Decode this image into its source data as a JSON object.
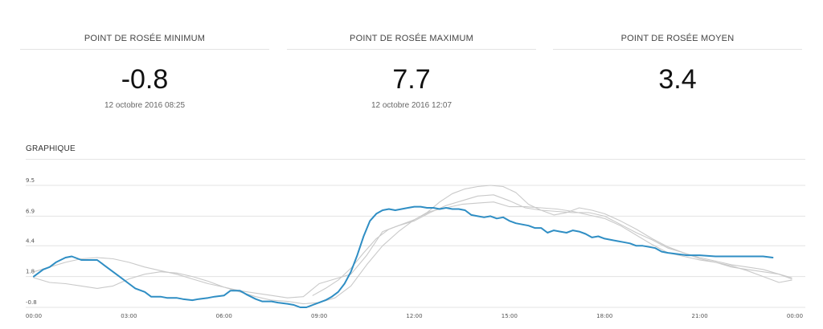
{
  "stats": [
    {
      "title": "POINT DE ROSÉE MINIMUM",
      "value": "-0.8",
      "date": "12 octobre 2016 08:25"
    },
    {
      "title": "POINT DE ROSÉE MAXIMUM",
      "value": "7.7",
      "date": "12 octobre 2016 12:07"
    },
    {
      "title": "POINT DE ROSÉE MOYEN",
      "value": "3.4",
      "date": ""
    }
  ],
  "section_title": "GRAPHIQUE",
  "colors": {
    "main": "#2f8ec4",
    "secondary": "#c9c9c9",
    "grid": "#e3e3e3"
  },
  "chart_data": {
    "type": "line",
    "title": "",
    "xlabel": "",
    "ylabel": "",
    "grid": true,
    "legend": "none",
    "xlim": [
      0,
      24
    ],
    "ylim": [
      -0.8,
      9.5
    ],
    "x_ticks": [
      "00:00",
      "03:00",
      "06:00",
      "09:00",
      "12:00",
      "15:00",
      "18:00",
      "21:00",
      "00:00"
    ],
    "y_ticks": [
      -0.8,
      1.8,
      4.4,
      6.9,
      9.5
    ],
    "series": [
      {
        "role": "main",
        "x": [
          0,
          0.3,
          0.5,
          0.7,
          1.0,
          1.2,
          1.5,
          1.7,
          2.0,
          2.2,
          2.5,
          2.7,
          3.0,
          3.2,
          3.5,
          3.7,
          4.0,
          4.2,
          4.5,
          4.7,
          5.0,
          5.2,
          5.5,
          5.7,
          6.0,
          6.2,
          6.5,
          6.7,
          7.0,
          7.2,
          7.5,
          7.7,
          8.0,
          8.2,
          8.4,
          8.6,
          8.8,
          9.0,
          9.2,
          9.4,
          9.6,
          9.8,
          10.0,
          10.2,
          10.4,
          10.6,
          10.8,
          11.0,
          11.2,
          11.4,
          11.6,
          11.8,
          12.0,
          12.2,
          12.4,
          12.6,
          12.8,
          13.0,
          13.2,
          13.4,
          13.6,
          13.8,
          14.0,
          14.2,
          14.4,
          14.6,
          14.8,
          15.0,
          15.2,
          15.4,
          15.6,
          15.8,
          16.0,
          16.2,
          16.4,
          16.6,
          16.8,
          17.0,
          17.2,
          17.4,
          17.6,
          17.8,
          18.0,
          18.2,
          18.4,
          18.6,
          18.8,
          19.0,
          19.2,
          19.4,
          19.6,
          19.8,
          20.0,
          20.3,
          20.6,
          21.0,
          21.5,
          22.0,
          22.5,
          23.0,
          23.3
        ],
        "values": [
          1.8,
          2.4,
          2.6,
          3.0,
          3.4,
          3.5,
          3.2,
          3.2,
          3.2,
          2.8,
          2.2,
          1.8,
          1.2,
          0.8,
          0.5,
          0.1,
          0.1,
          0.0,
          0.0,
          -0.1,
          -0.2,
          -0.1,
          0.0,
          0.1,
          0.2,
          0.6,
          0.6,
          0.3,
          -0.1,
          -0.3,
          -0.3,
          -0.4,
          -0.5,
          -0.6,
          -0.8,
          -0.8,
          -0.6,
          -0.4,
          -0.2,
          0.1,
          0.5,
          1.2,
          2.2,
          3.6,
          5.2,
          6.5,
          7.1,
          7.4,
          7.5,
          7.4,
          7.5,
          7.6,
          7.7,
          7.7,
          7.6,
          7.6,
          7.5,
          7.6,
          7.5,
          7.5,
          7.4,
          7.0,
          6.9,
          6.8,
          6.9,
          6.7,
          6.8,
          6.5,
          6.3,
          6.2,
          6.1,
          5.9,
          5.9,
          5.5,
          5.7,
          5.6,
          5.5,
          5.7,
          5.6,
          5.4,
          5.1,
          5.2,
          5.0,
          4.9,
          4.8,
          4.7,
          4.6,
          4.4,
          4.4,
          4.3,
          4.2,
          3.9,
          3.8,
          3.7,
          3.6,
          3.6,
          3.5,
          3.5,
          3.5,
          3.5,
          3.4
        ]
      },
      {
        "role": "secondary",
        "x": [
          0,
          0.5,
          1.0,
          1.5,
          2.0,
          2.5,
          3.0,
          3.5,
          4.0,
          4.5,
          5.0,
          5.5,
          6.0,
          6.5,
          7.0,
          7.5,
          8.0,
          8.5,
          9.0,
          9.5,
          10.0,
          10.5,
          11.0,
          11.5,
          12.0,
          12.5,
          13.0,
          13.5,
          14.0,
          14.5,
          15.0,
          15.5,
          16.0,
          16.5,
          17.0,
          17.5,
          18.0,
          18.5,
          19.0,
          19.5,
          20.0,
          20.5,
          21.0,
          21.5,
          22.0,
          22.5,
          23.0,
          23.5,
          23.9
        ],
        "values": [
          2.2,
          2.6,
          3.0,
          3.3,
          3.4,
          3.3,
          3.0,
          2.6,
          2.3,
          2.0,
          1.6,
          1.2,
          0.9,
          0.6,
          0.4,
          0.2,
          0.0,
          0.1,
          1.2,
          1.6,
          2.0,
          3.6,
          5.6,
          6.1,
          6.5,
          7.2,
          7.8,
          8.2,
          8.6,
          8.7,
          8.2,
          7.6,
          7.4,
          7.3,
          7.2,
          7.2,
          6.9,
          6.2,
          5.5,
          4.9,
          4.2,
          3.8,
          3.3,
          3.0,
          2.6,
          2.4,
          2.2,
          2.0,
          1.7
        ]
      },
      {
        "role": "secondary",
        "x": [
          0,
          0.5,
          1.0,
          1.5,
          2.0,
          2.5,
          3.0,
          3.5,
          4.0,
          4.5,
          5.0,
          5.5,
          6.0,
          6.5,
          7.0,
          7.5,
          8.0,
          8.5,
          9.0,
          9.5,
          10.0,
          10.5,
          11.0,
          11.5,
          12.0,
          12.5,
          13.0,
          13.5,
          14.0,
          14.5,
          15.0,
          15.5,
          16.0,
          16.5,
          17.0,
          17.5,
          18.0,
          18.5,
          19.0,
          19.5,
          20.0,
          20.5,
          21.0,
          21.5,
          22.0,
          22.5,
          23.0,
          23.5,
          23.9
        ],
        "values": [
          1.7,
          1.3,
          1.2,
          1.0,
          0.8,
          1.0,
          1.6,
          2.0,
          2.2,
          2.1,
          1.8,
          1.4,
          0.9,
          0.5,
          0.1,
          -0.2,
          -0.3,
          -0.5,
          -0.4,
          0.0,
          1.0,
          2.8,
          4.4,
          5.6,
          6.6,
          7.3,
          7.6,
          7.9,
          8.0,
          8.1,
          7.7,
          7.7,
          7.6,
          7.5,
          7.3,
          7.0,
          6.7,
          6.1,
          5.3,
          4.5,
          3.8,
          3.5,
          3.2,
          3.0,
          2.7,
          2.3,
          1.8,
          1.3,
          1.5
        ]
      },
      {
        "role": "secondary",
        "x": [
          8.8,
          9.2,
          9.6,
          10.0,
          10.4,
          10.8,
          11.2,
          11.6,
          12.0,
          12.4,
          12.8,
          13.2,
          13.6,
          14.0,
          14.4,
          14.8,
          15.2,
          15.6,
          16.0,
          16.4,
          16.8,
          17.2,
          17.6,
          18.0,
          18.5,
          19.0,
          19.5,
          20.0,
          20.5,
          21.0,
          21.5,
          22.0,
          22.5,
          23.0,
          23.5,
          23.9
        ],
        "values": [
          0.2,
          0.8,
          1.5,
          2.5,
          3.8,
          5.0,
          5.8,
          6.2,
          6.6,
          7.2,
          8.1,
          8.8,
          9.2,
          9.4,
          9.5,
          9.4,
          8.9,
          7.9,
          7.4,
          7.0,
          7.2,
          7.6,
          7.4,
          7.1,
          6.5,
          5.8,
          5.0,
          4.3,
          3.8,
          3.4,
          3.1,
          2.8,
          2.6,
          2.4,
          2.0,
          1.6
        ]
      }
    ]
  }
}
